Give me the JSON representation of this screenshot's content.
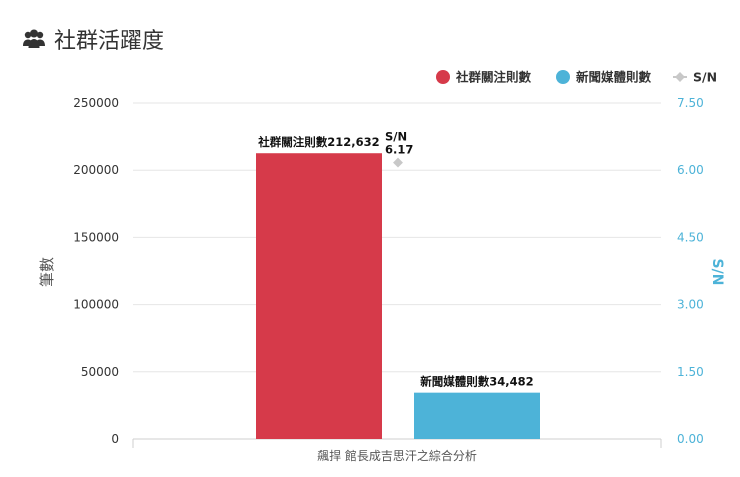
{
  "header": {
    "title": "社群活躍度",
    "icon": "users-icon"
  },
  "chart_data": {
    "type": "bar",
    "categories": [
      "飆捍 館長成吉思汗之綜合分析"
    ],
    "series": [
      {
        "name": "社群關注則數",
        "values": [
          212632
        ],
        "color": "#d63a4a",
        "label": "社群關注則數212,632"
      },
      {
        "name": "新聞媒體則數",
        "values": [
          34482
        ],
        "color": "#4db3d8",
        "label": "新聞媒體則數34,482"
      }
    ],
    "secondary_series": {
      "name": "S/N",
      "type": "scatter",
      "values": [
        6.17
      ],
      "color": "#c8c8c8",
      "label_name": "S/N",
      "label_value": "6.17"
    },
    "ylabel": "筆數",
    "y2label": "S/N",
    "ylim": [
      0,
      250000
    ],
    "y2lim": [
      0,
      7.5
    ],
    "yticks": [
      "0",
      "50000",
      "100000",
      "150000",
      "200000",
      "250000"
    ],
    "y2ticks": [
      "0.00",
      "1.50",
      "3.00",
      "4.50",
      "6.00",
      "7.50"
    ],
    "legend": [
      "社群關注則數",
      "新聞媒體則數",
      "S/N"
    ],
    "legend_position": "top-right",
    "grid": true
  }
}
